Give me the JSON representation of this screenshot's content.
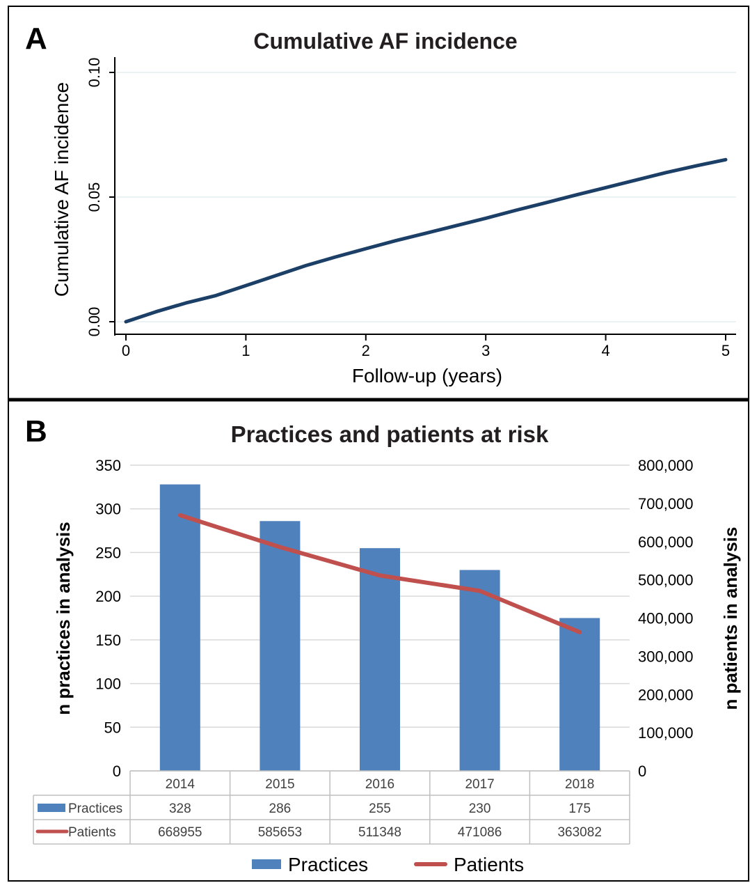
{
  "panel_a": {
    "letter": "A",
    "title": "Cumulative AF incidence",
    "xlabel": "Follow-up (years)",
    "ylabel": "Cumulative AF incidence",
    "x_ticks": [
      "0",
      "1",
      "2",
      "3",
      "4",
      "5"
    ],
    "y_ticks": [
      "0.00",
      "0.05",
      "0.10"
    ]
  },
  "panel_b": {
    "letter": "B",
    "title": "Practices and patients at risk",
    "ylabel_left": "n practices in analysis",
    "ylabel_right": "n patients in analysis",
    "left_ticks": [
      "0",
      "50",
      "100",
      "150",
      "200",
      "250",
      "300",
      "350"
    ],
    "right_ticks": [
      "0",
      "100,000",
      "200,000",
      "300,000",
      "400,000",
      "500,000",
      "600,000",
      "700,000",
      "800,000"
    ],
    "table": {
      "row_labels": [
        "Practices",
        "Patients"
      ],
      "practices": [
        "328",
        "286",
        "255",
        "230",
        "175"
      ],
      "patients": [
        "668955",
        "585653",
        "511348",
        "471086",
        "363082"
      ]
    },
    "legend": [
      "Practices",
      "Patients"
    ]
  },
  "colors": {
    "curve": "#1b3f66",
    "bar": "#4f81bd",
    "line": "#c0504d",
    "gridline": "#d9d9d9",
    "grid_a": "#e4eef0"
  },
  "chart_data": [
    {
      "type": "line",
      "title": "Cumulative AF incidence",
      "xlabel": "Follow-up (years)",
      "ylabel": "Cumulative AF incidence",
      "xlim": [
        0,
        5
      ],
      "ylim": [
        0,
        0.1
      ],
      "grid": true,
      "series": [
        {
          "x": [
            0,
            0.25,
            0.5,
            0.75,
            1,
            1.25,
            1.5,
            1.75,
            2,
            2.25,
            2.5,
            2.75,
            3,
            3.25,
            3.5,
            3.75,
            4,
            4.25,
            4.5,
            4.75,
            5
          ],
          "y": [
            0,
            0.004,
            0.0075,
            0.0105,
            0.0145,
            0.0185,
            0.0225,
            0.026,
            0.0293,
            0.0325,
            0.0355,
            0.0385,
            0.0415,
            0.0447,
            0.0477,
            0.0508,
            0.0538,
            0.0568,
            0.0598,
            0.0625,
            0.065
          ]
        }
      ]
    },
    {
      "type": "bar",
      "title": "Practices and patients at risk",
      "categories": [
        "2014",
        "2015",
        "2016",
        "2017",
        "2018"
      ],
      "ylabel_left": "n practices in analysis",
      "ylabel_right": "n patients in analysis",
      "ylim_left": [
        0,
        350
      ],
      "ylim_right": [
        0,
        800000
      ],
      "grid": true,
      "legend_position": "bottom",
      "series": [
        {
          "name": "Practices",
          "type": "bar",
          "axis": "left",
          "values": [
            328,
            286,
            255,
            230,
            175
          ]
        },
        {
          "name": "Patients",
          "type": "line",
          "axis": "right",
          "values": [
            668955,
            585653,
            511348,
            471086,
            363082
          ]
        }
      ]
    }
  ]
}
